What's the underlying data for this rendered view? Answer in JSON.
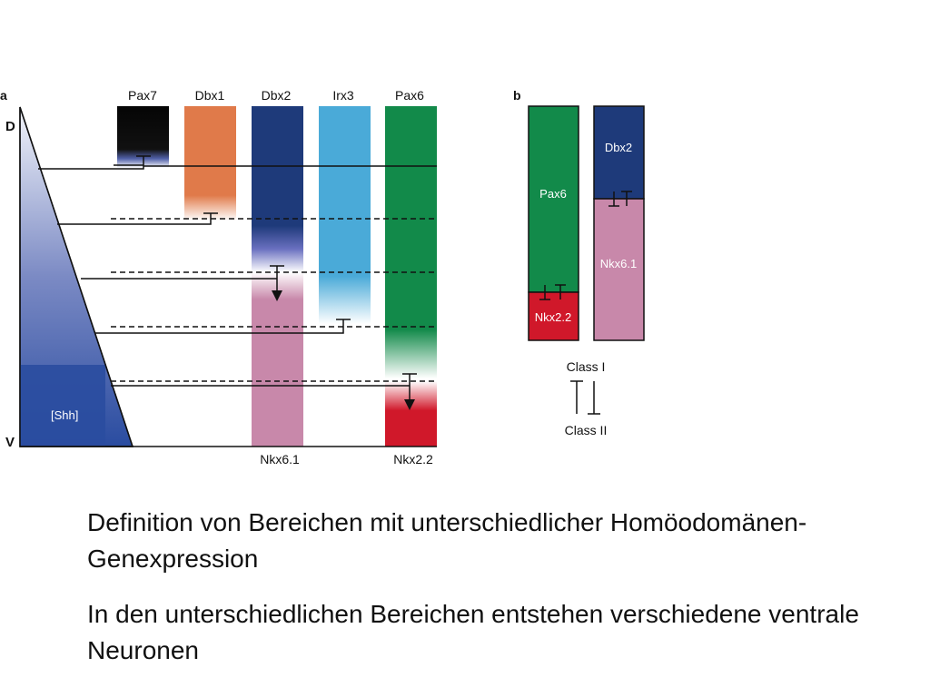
{
  "panel_a": {
    "label": "a",
    "axis_top": "D",
    "axis_bottom": "V",
    "gradient_label": "[Shh]",
    "genes": [
      "Pax7",
      "Dbx1",
      "Dbx2",
      "Irx3",
      "Pax6"
    ],
    "bottom_labels": [
      "Nkx6.1",
      "Nkx2.2"
    ]
  },
  "panel_b": {
    "label": "b",
    "left_column": [
      "Pax6",
      "Nkx2.2"
    ],
    "right_column": [
      "Dbx2",
      "Nkx6.1"
    ],
    "class_top": "Class I",
    "class_bottom": "Class II"
  },
  "colors": {
    "pax7": "#0a0a0a",
    "dbx1": "#e07a4a",
    "dbx2": "#1e3a7a",
    "irx3": "#4aaad8",
    "pax6": "#128a4a",
    "nkx61": "#c888aa",
    "nkx22": "#d0182a",
    "shh": "#2a4ca0"
  },
  "captions": [
    "Definition von Bereichen mit unterschiedlicher Homöodomänen-Genexpression",
    "In den unterschiedlichen Bereichen entstehen verschiedene ventrale Neuronen"
  ]
}
